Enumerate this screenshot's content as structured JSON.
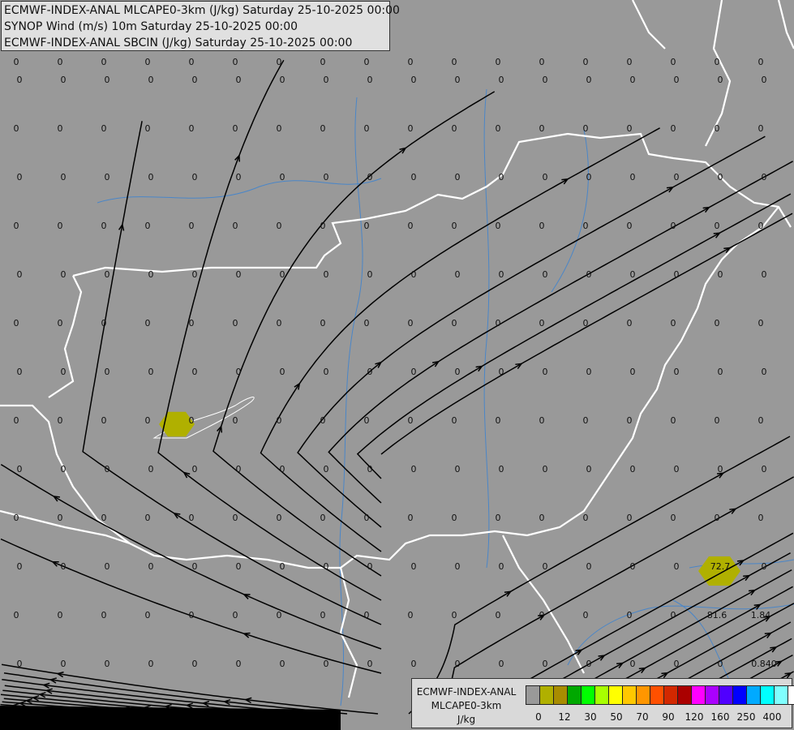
{
  "header": {
    "lines": [
      "ECMWF-INDEX-ANAL MLCAPE0-3km (J/kg) Saturday 25-10-2025 00:00",
      "SYNOP Wind (m/s) 10m Saturday 25-10-2025 00:00",
      "ECMWF-INDEX-ANAL SBCIN (J/kg) Saturday 25-10-2025 00:00"
    ]
  },
  "legend": {
    "title_line1": "ECMWF-INDEX-ANAL",
    "title_line2": "MLCAPE0-3km",
    "unit": "J/kg",
    "colors": [
      "#999999",
      "#b0b000",
      "#a88c00",
      "#00a800",
      "#00ff00",
      "#a8ff00",
      "#ffff00",
      "#ffc800",
      "#ff9600",
      "#ff5000",
      "#d22800",
      "#aa0000",
      "#ff00ff",
      "#aa00ff",
      "#5000ff",
      "#0000ff",
      "#00aaff",
      "#00ffff",
      "#80ffff",
      "#ffffff"
    ],
    "tick_labels": [
      "0",
      "12",
      "30",
      "50",
      "70",
      "90",
      "120",
      "160",
      "250",
      "400"
    ]
  },
  "map": {
    "land_color": "#999999",
    "border_color": "#ffffff",
    "river_color": "#4a86c8",
    "streamline_color": "#000000",
    "cape_fill_color": "#b0b000",
    "cape_cells": [
      {
        "value": "72.7"
      }
    ],
    "station_values": [
      [
        "0",
        "0",
        "0",
        "0",
        "0",
        "0",
        "0",
        "0",
        "0",
        "0",
        "0",
        "0",
        "0",
        "0",
        "0",
        "0",
        "0",
        "0"
      ],
      [
        "0",
        "0",
        "0",
        "0",
        "0",
        "0",
        "0",
        "0",
        "0",
        "0",
        "0",
        "0",
        "0",
        "0",
        "0",
        "0",
        "0",
        "0"
      ],
      [
        "0",
        "0",
        "0",
        "0",
        "0",
        "0",
        "0",
        "0",
        "0",
        "0",
        "0",
        "0",
        "0",
        "0",
        "0",
        "0",
        "0",
        "0"
      ],
      [
        "0",
        "0",
        "0",
        "0",
        "0",
        "0",
        "0",
        "0",
        "0",
        "0",
        "0",
        "0",
        "0",
        "0",
        "0",
        "0",
        "0",
        "0"
      ],
      [
        "0",
        "0",
        "0",
        "0",
        "0",
        "0",
        "0",
        "0",
        "0",
        "0",
        "0",
        "0",
        "0",
        "0",
        "0",
        "0",
        "0",
        "0"
      ],
      [
        "0",
        "0",
        "0",
        "0",
        "0",
        "0",
        "0",
        "0",
        "0",
        "0",
        "0",
        "0",
        "0",
        "0",
        "0",
        "0",
        "0",
        "0"
      ],
      [
        "0",
        "0",
        "0",
        "0",
        "0",
        "0",
        "0",
        "0",
        "0",
        "0",
        "0",
        "0",
        "0",
        "0",
        "0",
        "0",
        "0",
        "0"
      ],
      [
        "0",
        "0",
        "0",
        "0",
        "0",
        "0",
        "0",
        "0",
        "0",
        "0",
        "0",
        "0",
        "0",
        "0",
        "0",
        "0",
        "0",
        "0"
      ],
      [
        "0",
        "0",
        "0",
        "0",
        "0",
        "0",
        "0",
        "0",
        "0",
        "0",
        "0",
        "0",
        "0",
        "0",
        "0",
        "0",
        "0",
        "0"
      ],
      [
        "0",
        "0",
        "0",
        "0",
        "0",
        "0",
        "0",
        "0",
        "0",
        "0",
        "0",
        "0",
        "0",
        "0",
        "0",
        "0",
        "0",
        "0"
      ],
      [
        "0",
        "0",
        "0",
        "0",
        "0",
        "0",
        "0",
        "0",
        "0",
        "0",
        "0",
        "0",
        "0",
        "0",
        "0",
        "0",
        "0",
        "0"
      ],
      [
        "0",
        "0",
        "0",
        "0",
        "0",
        "0",
        "0",
        "0",
        "0",
        "0",
        "0",
        "0",
        "0",
        "0",
        "0",
        "0",
        "72.7",
        "0"
      ],
      [
        "0",
        "0",
        "0",
        "0",
        "0",
        "0",
        "0",
        "0",
        "0",
        "0",
        "0",
        "0",
        "0",
        "0",
        "0",
        "0",
        "81.6",
        "1.84"
      ],
      [
        "0",
        "0",
        "0",
        "0",
        "0",
        "0",
        "0",
        "0",
        "0",
        "0",
        "0",
        "0",
        "0",
        "0",
        "0",
        "0",
        "0",
        "0.840"
      ]
    ]
  }
}
